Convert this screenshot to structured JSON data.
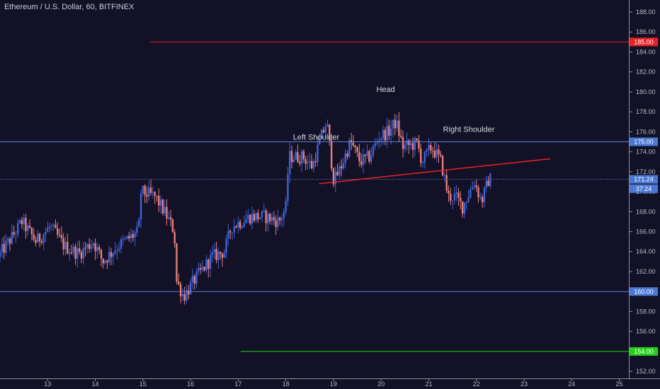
{
  "chart_data": {
    "type": "candlestick",
    "title": "Ethereum / U.S. Dollar, 60, BITFINEX",
    "x_tick_labels": [
      "13",
      "14",
      "15",
      "16",
      "17",
      "18",
      "19",
      "20",
      "21",
      "22",
      "23",
      "24",
      "25"
    ],
    "x_range": [
      12.0,
      25.2
    ],
    "y_tick_labels": [
      "188.00",
      "186.00",
      "184.00",
      "182.00",
      "180.00",
      "178.00",
      "176.00",
      "174.00",
      "172.00",
      "170.00",
      "168.00",
      "166.00",
      "164.00",
      "162.00",
      "160.00",
      "158.00",
      "156.00",
      "154.00",
      "152.00"
    ],
    "y_range": [
      151.3,
      189.2
    ],
    "horizontal_lines": [
      {
        "label": "185.00",
        "value": 185.0,
        "color": "#e62323",
        "x_start": 15.15,
        "tag_color": "#e62323"
      },
      {
        "label": "175.00",
        "value": 175.0,
        "color": "#5b7fd6",
        "x_start": 12.0,
        "tag_color": "#4a78d4"
      },
      {
        "label": "160.00",
        "value": 160.0,
        "color": "#5b7fd6",
        "x_start": 12.0,
        "tag_color": "#4a78d4"
      },
      {
        "label": "154.00",
        "value": 154.0,
        "color": "#22d11a",
        "x_start": 17.05,
        "tag_color": "#22d11a"
      }
    ],
    "last_price": {
      "label": "171.24",
      "value": 171.24,
      "color": "#4a78d4"
    },
    "countdown": {
      "label": "37:24",
      "value": 170.3,
      "color": "#4a78d4"
    },
    "neckline": {
      "color": "#e62323",
      "x1": 18.7,
      "y1": 170.8,
      "x2": 23.55,
      "y2": 173.3
    },
    "annotations": [
      {
        "text": "Left Shoulder",
        "x": 18.15,
        "y": 175.2
      },
      {
        "text": "Head",
        "x": 19.9,
        "y": 180.0
      },
      {
        "text": "Right Shoulder",
        "x": 21.3,
        "y": 176.0
      }
    ],
    "up_color": "#3e63d8",
    "down_color": "#e77f7a",
    "price_path": [
      [
        12.0,
        163.5
      ],
      [
        12.3,
        165.5
      ],
      [
        12.5,
        167.0
      ],
      [
        12.8,
        165.0
      ],
      [
        13.1,
        166.5
      ],
      [
        13.4,
        164.5
      ],
      [
        13.7,
        163.8
      ],
      [
        14.0,
        165.0
      ],
      [
        14.2,
        163.0
      ],
      [
        14.5,
        164.5
      ],
      [
        14.8,
        165.5
      ],
      [
        14.95,
        166.0
      ],
      [
        15.0,
        170.0
      ],
      [
        15.3,
        169.5
      ],
      [
        15.55,
        167.5
      ],
      [
        15.7,
        166.0
      ],
      [
        15.75,
        161.0
      ],
      [
        15.9,
        159.5
      ],
      [
        16.1,
        161.0
      ],
      [
        16.5,
        163.5
      ],
      [
        16.75,
        164.0
      ],
      [
        16.9,
        166.5
      ],
      [
        17.1,
        167.0
      ],
      [
        17.3,
        167.5
      ],
      [
        17.6,
        167.5
      ],
      [
        17.9,
        167.0
      ],
      [
        18.05,
        168.5
      ],
      [
        18.1,
        173.5
      ],
      [
        18.4,
        173.5
      ],
      [
        18.6,
        172.5
      ],
      [
        18.75,
        175.0
      ],
      [
        18.9,
        177.0
      ],
      [
        19.05,
        171.0
      ],
      [
        19.2,
        172.5
      ],
      [
        19.4,
        175.0
      ],
      [
        19.6,
        173.0
      ],
      [
        19.8,
        173.5
      ],
      [
        20.0,
        175.5
      ],
      [
        20.2,
        176.0
      ],
      [
        20.35,
        177.0
      ],
      [
        20.5,
        174.5
      ],
      [
        20.8,
        174.8
      ],
      [
        20.9,
        173.0
      ],
      [
        21.1,
        174.5
      ],
      [
        21.3,
        173.0
      ],
      [
        21.45,
        169.5
      ],
      [
        21.6,
        169.5
      ],
      [
        21.75,
        168.5
      ],
      [
        21.9,
        170.0
      ],
      [
        22.0,
        171.0
      ],
      [
        22.15,
        169.0
      ],
      [
        22.3,
        171.24
      ]
    ]
  }
}
